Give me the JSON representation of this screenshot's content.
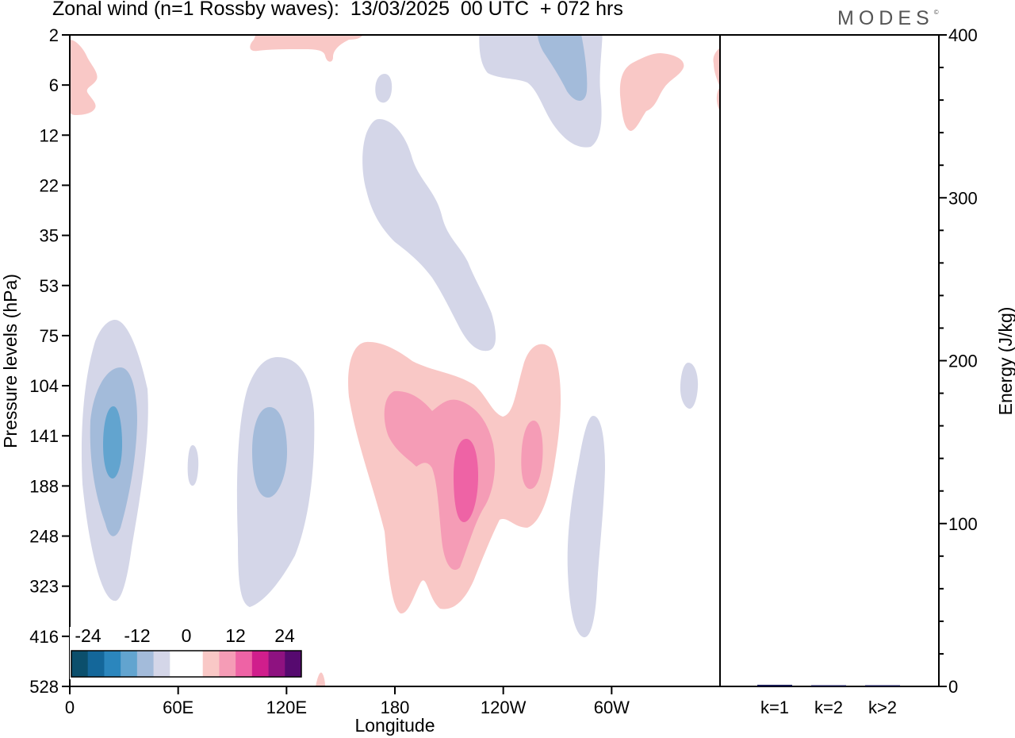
{
  "title": "Zonal wind (n=1 Rossby waves):  13/03/2025  00 UTC  + 072 hrs",
  "brand": "MODES",
  "brand_mark": "©",
  "colors": {
    "neg": [
      "#0b4f6c",
      "#14679a",
      "#2b86bd",
      "#62a4cf",
      "#a3bbda",
      "#d4d6e8"
    ],
    "pos": [
      "#f9c8c6",
      "#f59cb6",
      "#ee63a5",
      "#d01e8c",
      "#8e1280",
      "#560a6f"
    ],
    "zero": "#ffffff",
    "bar": "#13164f"
  },
  "chart_data": [
    {
      "type": "contour",
      "title": "Zonal wind (n=1 Rossby waves):  13/03/2025  00 UTC  + 072 hrs",
      "xlabel": "Longitude",
      "ylabel": "Pressure levels (hPa)",
      "x_tick_labels": [
        "0",
        "60E",
        "120E",
        "180",
        "120W",
        "60W"
      ],
      "x_tick_values_deg": [
        0,
        60,
        120,
        180,
        240,
        300
      ],
      "x_range_deg": [
        0,
        360
      ],
      "y_tick_labels": [
        "2",
        "6",
        "12",
        "22",
        "35",
        "53",
        "75",
        "104",
        "141",
        "188",
        "248",
        "323",
        "416",
        "528"
      ],
      "y_scale": "model levels (log-like), 2 hPa at top, 528 hPa at bottom",
      "legend": {
        "labels": [
          "-24",
          "-12",
          "0",
          "12",
          "24"
        ],
        "levels": [
          -30,
          -25,
          -20,
          -15,
          -10,
          -5,
          5,
          10,
          15,
          20,
          25,
          30
        ],
        "placement": "bottom-left"
      },
      "features": [
        {
          "sign": "negative",
          "lon_center": 25,
          "pressure_range": [
            "75",
            "323"
          ],
          "min": -18
        },
        {
          "sign": "negative",
          "lon_center": 105,
          "pressure_range": [
            "104",
            "323"
          ],
          "min": -12
        },
        {
          "sign": "negative",
          "lon_center": 67,
          "pressure_range": [
            "141",
            "188"
          ],
          "min": -5
        },
        {
          "sign": "negative",
          "lon_center": 195,
          "pressure_range": [
            "12",
            "75"
          ],
          "min": -5
        },
        {
          "sign": "negative",
          "lon_center": 282,
          "pressure_range": [
            "2",
            "12"
          ],
          "min": -12
        },
        {
          "sign": "negative",
          "lon_center": 284,
          "pressure_range": [
            "141",
            "416"
          ],
          "min": -5
        },
        {
          "sign": "negative",
          "lon_center": 343,
          "pressure_range": [
            "104",
            "141"
          ],
          "min": -5
        },
        {
          "sign": "positive",
          "lon_center": 220,
          "pressure_range": [
            "75",
            "416"
          ],
          "max": 18
        },
        {
          "sign": "positive",
          "lon_center": 250,
          "pressure_range": [
            "141",
            "188"
          ],
          "max": 10
        },
        {
          "sign": "positive",
          "lon_center": 315,
          "pressure_range": [
            "2",
            "12"
          ],
          "max": 5
        },
        {
          "sign": "positive",
          "lon_center": 5,
          "pressure_range": [
            "2",
            "12"
          ],
          "max": 5
        },
        {
          "sign": "positive",
          "lon_center": 145,
          "pressure_range": [
            "2",
            "6"
          ],
          "max": 5
        }
      ]
    },
    {
      "type": "bar",
      "categories": [
        "k=1",
        "k=2",
        "k>2"
      ],
      "values": [
        1.0,
        0.3,
        0.4
      ],
      "ylabel": "Energy (J/kg)",
      "ylim": [
        0,
        400
      ],
      "y_tick_labels": [
        "0",
        "100",
        "200",
        "300",
        "400"
      ],
      "y_tick_values": [
        0,
        100,
        200,
        300,
        400
      ]
    }
  ]
}
